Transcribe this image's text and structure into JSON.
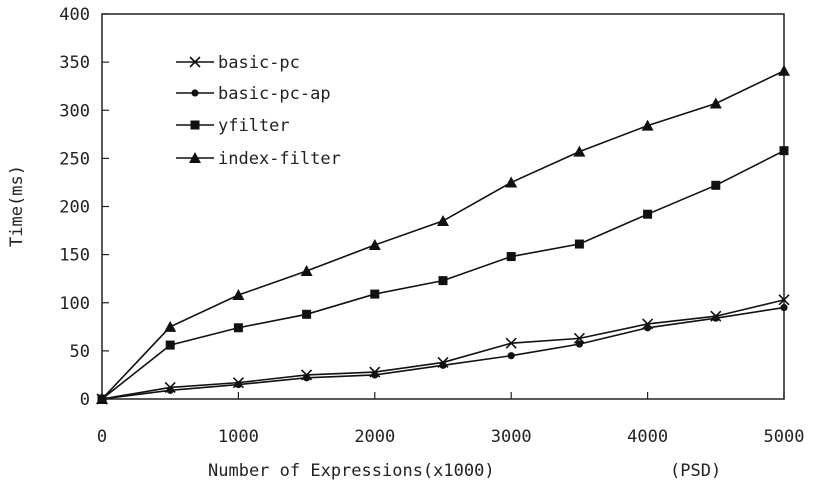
{
  "chart_data": {
    "type": "line",
    "title": "",
    "xlabel": "Number of Expressions(x1000)",
    "xlabel_note": "(PSD)",
    "ylabel": "Time(ms)",
    "xlim": [
      0,
      5000
    ],
    "ylim": [
      0,
      400
    ],
    "xticks": [
      0,
      1000,
      2000,
      3000,
      4000,
      5000
    ],
    "yticks": [
      0,
      50,
      100,
      150,
      200,
      250,
      300,
      350,
      400
    ],
    "grid": false,
    "legend_position": "top-left",
    "x": [
      0,
      500,
      1000,
      1500,
      2000,
      2500,
      3000,
      3500,
      4000,
      4500,
      5000
    ],
    "series": [
      {
        "name": "basic-pc",
        "marker": "x",
        "values": [
          0,
          12,
          17,
          25,
          28,
          38,
          58,
          63,
          78,
          86,
          103
        ]
      },
      {
        "name": "basic-pc-ap",
        "marker": "circle",
        "values": [
          0,
          9,
          15,
          22,
          25,
          35,
          45,
          57,
          74,
          84,
          95
        ]
      },
      {
        "name": "yfilter",
        "marker": "square",
        "values": [
          0,
          56,
          74,
          88,
          109,
          123,
          148,
          161,
          192,
          222,
          258
        ]
      },
      {
        "name": "index-filter",
        "marker": "triangle",
        "values": [
          0,
          75,
          108,
          133,
          160,
          185,
          225,
          257,
          284,
          307,
          341
        ]
      }
    ]
  }
}
